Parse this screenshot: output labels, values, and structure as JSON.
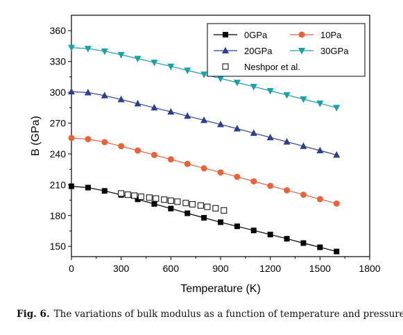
{
  "figure": {
    "label": "Fig. 6.",
    "caption": "The variations of bulk modulus as a function of temperature and pressure."
  },
  "chart_data": {
    "type": "line",
    "xlabel": "Temperature (K)",
    "ylabel": "B (GPa)",
    "xlim": [
      0,
      1800
    ],
    "ylim": [
      140,
      375
    ],
    "xticks": [
      0,
      300,
      600,
      900,
      1200,
      1500,
      1800
    ],
    "yticks": [
      150,
      180,
      210,
      240,
      270,
      300,
      330,
      360
    ],
    "legend_position": "top-right",
    "series": [
      {
        "name": "0GPa",
        "color": "#000000",
        "marker": "square",
        "line": true,
        "x": [
          0,
          100,
          200,
          300,
          400,
          500,
          600,
          700,
          800,
          900,
          1000,
          1100,
          1200,
          1300,
          1400,
          1500,
          1600
        ],
        "y": [
          208.5,
          207.2,
          204.0,
          200.1,
          195.8,
          191.3,
          186.8,
          182.2,
          177.8,
          173.5,
          169.5,
          165.5,
          161.5,
          157.4,
          153.2,
          149.1,
          145.0
        ]
      },
      {
        "name": "10Pa",
        "color": "#e8623a",
        "marker": "circle",
        "line": true,
        "x": [
          0,
          100,
          200,
          300,
          400,
          500,
          600,
          700,
          800,
          900,
          1000,
          1100,
          1200,
          1300,
          1400,
          1500,
          1600
        ],
        "y": [
          255.5,
          254.4,
          251.5,
          247.5,
          243.3,
          239.0,
          234.7,
          230.3,
          226.0,
          222.0,
          217.7,
          213.3,
          208.9,
          204.6,
          200.3,
          196.0,
          191.7
        ]
      },
      {
        "name": "20GPa",
        "color": "#2e3d8f",
        "marker": "triangle-up",
        "line": true,
        "x": [
          0,
          100,
          200,
          300,
          400,
          500,
          600,
          700,
          800,
          900,
          1000,
          1100,
          1200,
          1300,
          1400,
          1500,
          1600
        ],
        "y": [
          300.6,
          299.7,
          296.8,
          293.0,
          289.0,
          285.0,
          281.0,
          276.9,
          272.8,
          268.7,
          264.6,
          260.3,
          256.0,
          251.8,
          247.5,
          243.3,
          239.0
        ]
      },
      {
        "name": "30GPa",
        "color": "#1aa0a6",
        "marker": "triangle-down",
        "line": true,
        "x": [
          0,
          100,
          200,
          300,
          400,
          500,
          600,
          700,
          800,
          900,
          1000,
          1100,
          1200,
          1300,
          1400,
          1500,
          1600
        ],
        "y": [
          343.5,
          342.5,
          340.0,
          336.5,
          332.8,
          329.0,
          325.2,
          321.3,
          317.4,
          313.4,
          309.5,
          305.5,
          301.4,
          297.4,
          293.3,
          289.2,
          285.0
        ]
      },
      {
        "name": "Neshpor et al.",
        "color": "#000000",
        "marker": "open-square",
        "line": false,
        "x": [
          300,
          340,
          380,
          420,
          470,
          510,
          560,
          600,
          640,
          690,
          730,
          780,
          820,
          870,
          920
        ],
        "y": [
          201.5,
          200.3,
          199.4,
          198.3,
          197.5,
          196.6,
          195.5,
          194.5,
          193.5,
          192.2,
          190.9,
          189.8,
          188.5,
          187.1,
          185.0
        ]
      }
    ]
  }
}
